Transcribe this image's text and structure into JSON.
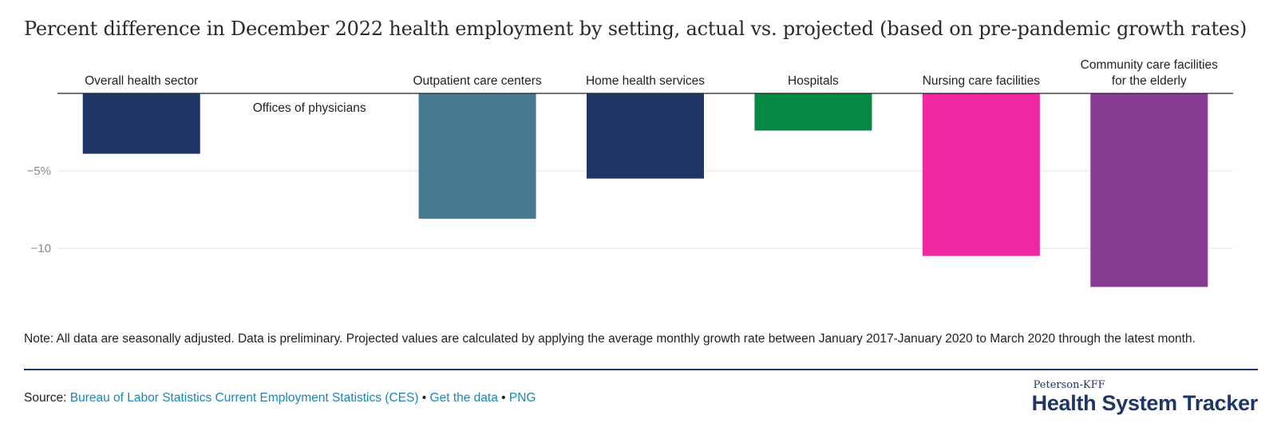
{
  "chart_data": {
    "type": "bar",
    "title": "Percent difference in December 2022 health employment by setting, actual vs. projected (based on pre-pandemic growth rates)",
    "categories": [
      "Overall health sector",
      "Offices of physicians",
      "Outpatient care centers",
      "Home health services",
      "Hospitals",
      "Nursing care facilities",
      "Community care facilities for the elderly"
    ],
    "values": [
      -3.9,
      0.0,
      -8.1,
      -5.5,
      -2.4,
      -10.5,
      -12.5
    ],
    "colors": [
      "#1f3566",
      "#1f3566",
      "#467a92",
      "#1f3566",
      "#058844",
      "#ef27a0",
      "#873b93"
    ],
    "yticks": [
      -5,
      -10
    ],
    "ytick_labels": [
      "−5%",
      "−10"
    ],
    "ylim": [
      -13,
      0
    ],
    "xlabel": "",
    "ylabel": "",
    "grid": true
  },
  "note": "Note: All data are seasonally adjusted. Data is preliminary. Projected values are calculated by applying the average monthly growth rate between January 2017-January 2020 to March 2020 through the latest month.",
  "source": {
    "label": "Source:",
    "link1": "Bureau of Labor Statistics Current Employment Statistics (CES)",
    "sep1": " • ",
    "link2": "Get the data",
    "sep2": " • ",
    "link3": "PNG"
  },
  "brand": {
    "top": "Peterson-KFF",
    "main": "Health System Tracker"
  }
}
